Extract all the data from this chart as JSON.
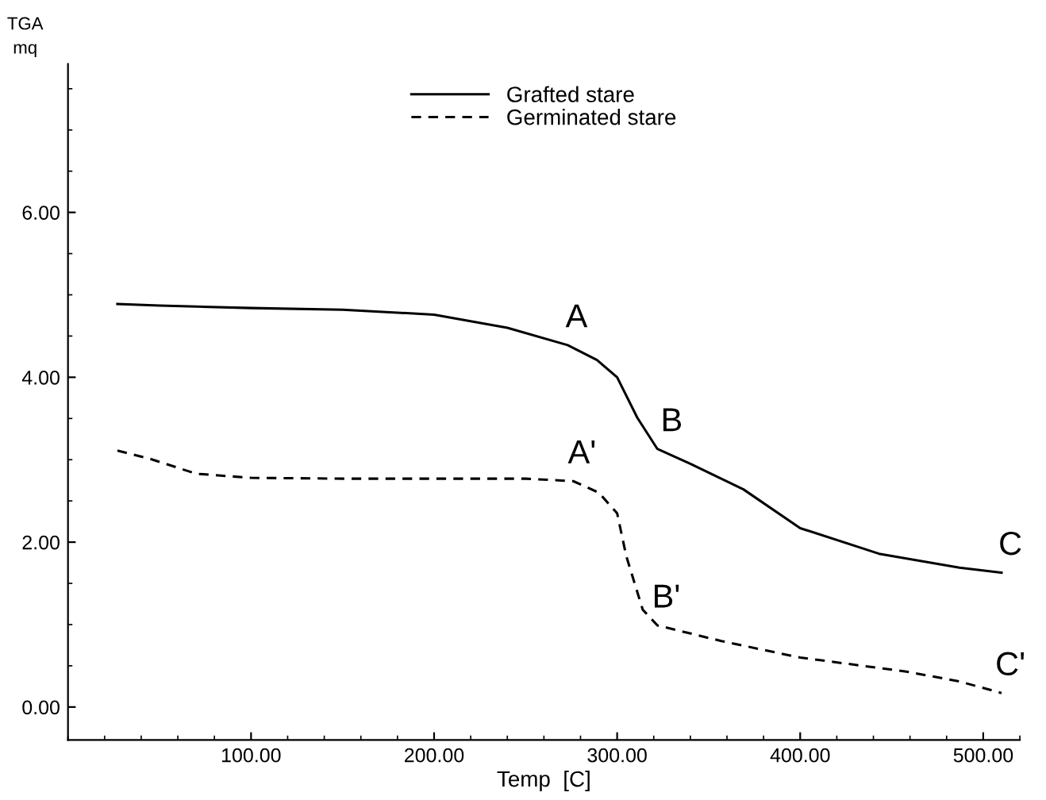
{
  "chart_data": {
    "type": "line",
    "xlabel": "Temp  [C]",
    "ylabel": "TGA\nmq",
    "xlim": [
      0,
      520
    ],
    "ylim": [
      -0.4,
      7.8
    ],
    "xticks": [
      {
        "value": 100,
        "label": "100.00"
      },
      {
        "value": 200,
        "label": "200.00"
      },
      {
        "value": 300,
        "label": "300.00"
      },
      {
        "value": 400,
        "label": "400.00"
      },
      {
        "value": 500,
        "label": "500.00"
      }
    ],
    "yticks": [
      {
        "value": 0,
        "label": "0.00"
      },
      {
        "value": 2,
        "label": "2.00"
      },
      {
        "value": 4,
        "label": "4.00"
      },
      {
        "value": 6,
        "label": "6.00"
      }
    ],
    "grid": false,
    "legend": "top",
    "series": [
      {
        "name": "Grafted stare",
        "color": "#000000",
        "line_style": "solid",
        "x": [
          27,
          50,
          100,
          150,
          200,
          240,
          273,
          289,
          300,
          311,
          322,
          340,
          369,
          400,
          443,
          487,
          510
        ],
        "values": [
          4.89,
          4.87,
          4.84,
          4.82,
          4.76,
          4.6,
          4.39,
          4.21,
          4.0,
          3.51,
          3.13,
          2.95,
          2.64,
          2.17,
          1.86,
          1.69,
          1.63
        ]
      },
      {
        "name": "Germinated stare",
        "color": "#000000",
        "line_style": "dashed",
        "x": [
          27,
          45,
          70,
          100,
          150,
          200,
          250,
          276,
          290,
          300,
          305,
          314,
          322,
          357,
          400,
          458,
          487,
          510
        ],
        "values": [
          3.11,
          3.01,
          2.83,
          2.78,
          2.77,
          2.77,
          2.77,
          2.74,
          2.6,
          2.35,
          1.83,
          1.18,
          0.99,
          0.8,
          0.6,
          0.43,
          0.31,
          0.17
        ]
      }
    ],
    "annotations": [
      {
        "text": "A",
        "x": 273,
        "y": 4.39
      },
      {
        "text": "B",
        "x": 325,
        "y": 3.13
      },
      {
        "text": "C",
        "x": 510,
        "y": 1.63
      },
      {
        "text": "A'",
        "x": 276,
        "y": 2.74
      },
      {
        "text": "B'",
        "x": 322,
        "y": 0.99
      },
      {
        "text": "C'",
        "x": 510,
        "y": 0.17
      }
    ]
  }
}
